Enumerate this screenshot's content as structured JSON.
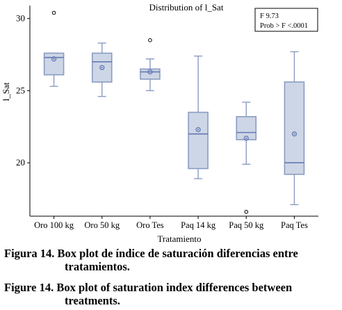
{
  "chart_data": {
    "type": "box",
    "title": "Distribution of l_Sat",
    "xlabel": "Tratamiento",
    "ylabel": "l_Sat",
    "ylim": [
      16.3,
      30.9
    ],
    "yticks": [
      20,
      25,
      30
    ],
    "categories": [
      "Oro 100 kg",
      "Oro 50 kg",
      "Oro Tes",
      "Paq 14 kg",
      "Paq 50 kg",
      "Paq Tes"
    ],
    "boxes": [
      {
        "category": "Oro 100 kg",
        "whisker_low": 25.3,
        "q1": 26.1,
        "median": 27.3,
        "q3": 27.6,
        "whisker_high": 27.6,
        "mean": 27.2,
        "outliers": [
          30.4
        ]
      },
      {
        "category": "Oro 50 kg",
        "whisker_low": 24.6,
        "q1": 25.6,
        "median": 27.0,
        "q3": 27.6,
        "whisker_high": 28.3,
        "mean": 26.6,
        "outliers": []
      },
      {
        "category": "Oro Tes",
        "whisker_low": 25.0,
        "q1": 25.8,
        "median": 26.3,
        "q3": 26.5,
        "whisker_high": 27.2,
        "mean": 26.3,
        "outliers": [
          28.5
        ]
      },
      {
        "category": "Paq 14 kg",
        "whisker_low": 18.9,
        "q1": 19.6,
        "median": 22.0,
        "q3": 23.5,
        "whisker_high": 27.4,
        "mean": 22.3,
        "outliers": []
      },
      {
        "category": "Paq 50 kg",
        "whisker_low": 19.9,
        "q1": 21.6,
        "median": 22.1,
        "q3": 23.2,
        "whisker_high": 24.2,
        "mean": 21.7,
        "outliers": [
          16.6
        ]
      },
      {
        "category": "Paq Tes",
        "whisker_low": 17.1,
        "q1": 19.2,
        "median": 20.0,
        "q3": 25.6,
        "whisker_high": 27.7,
        "mean": 22.0,
        "outliers": []
      }
    ],
    "stats_box": {
      "line1": "F 9.73",
      "line2": "Prob > F <.0001"
    },
    "colors": {
      "box_fill": "#cdd6e6",
      "box_stroke": "#8a9cc2",
      "median": "#6478b4",
      "mean_marker": "#6478b4",
      "outlier": "#000000"
    }
  },
  "caption_es": {
    "label": "Figura 14.",
    "text_line1": "Box plot de índice de saturación diferencias entre",
    "text_line2": "tratamientos."
  },
  "caption_en": {
    "label": "Figure 14.",
    "text_line1": "Box plot of saturation index differences between",
    "text_line2": "treatments."
  }
}
